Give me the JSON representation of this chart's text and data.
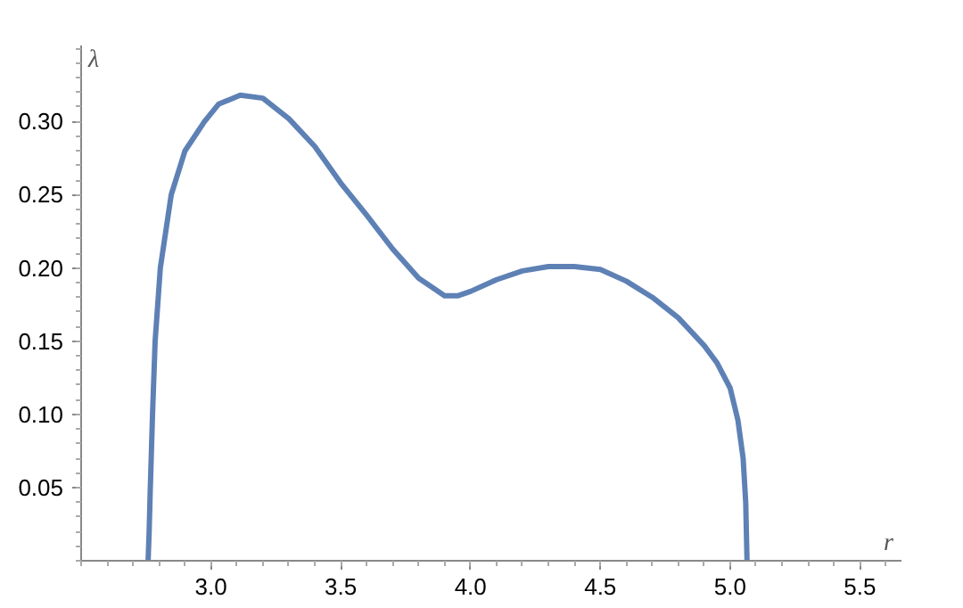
{
  "chart_data": {
    "type": "line",
    "xlabel": "r",
    "ylabel": "λ",
    "xlim": [
      2.5,
      5.66
    ],
    "ylim": [
      0,
      0.352
    ],
    "xticks": [
      {
        "value": 3,
        "label": "3.0"
      },
      3.5,
      {
        "value": 4,
        "label": "4.0"
      },
      4.5,
      {
        "value": 5,
        "label": "5.0"
      },
      5.5
    ],
    "yticks": [
      0.05,
      {
        "value": 0.1,
        "label": "0.10"
      },
      0.15,
      {
        "value": 0.2,
        "label": "0.20"
      },
      0.25,
      {
        "value": 0.3,
        "label": "0.30"
      }
    ],
    "grid": false,
    "marker": "none",
    "line_style": "solid",
    "series": [
      {
        "color": "#5e81b5",
        "x": [
          2.758,
          2.762,
          2.766,
          2.775,
          2.785,
          2.805,
          2.847,
          2.9,
          2.975,
          3.03,
          3.113,
          3.2,
          3.3,
          3.4,
          3.5,
          3.6,
          3.7,
          3.8,
          3.9,
          3.95,
          4.0,
          4.1,
          4.2,
          4.3,
          4.4,
          4.5,
          4.6,
          4.7,
          4.8,
          4.9,
          4.95,
          5.0,
          5.03,
          5.05,
          5.06,
          5.065
        ],
        "values": [
          0,
          0.02,
          0.047,
          0.1,
          0.15,
          0.2,
          0.25,
          0.28,
          0.3,
          0.312,
          0.318,
          0.316,
          0.302,
          0.283,
          0.258,
          0.236,
          0.213,
          0.193,
          0.181,
          0.181,
          0.184,
          0.192,
          0.198,
          0.201,
          0.201,
          0.199,
          0.191,
          0.18,
          0.166,
          0.147,
          0.135,
          0.118,
          0.096,
          0.07,
          0.04,
          0
        ]
      }
    ]
  }
}
